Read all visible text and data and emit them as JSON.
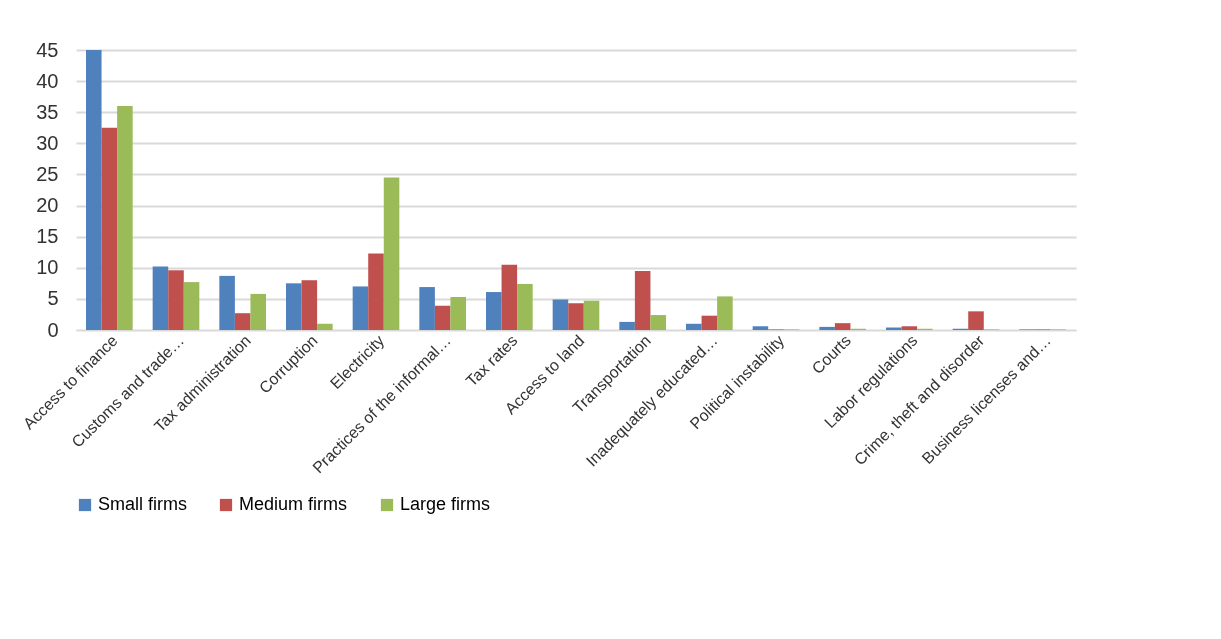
{
  "chart_data": {
    "type": "bar",
    "categories": [
      "Access to finance",
      "Customs and trade…",
      "Tax administration",
      "Corruption",
      "Electricity",
      "Practices of the informal…",
      "Tax rates",
      "Access to land",
      "Transportation",
      "Inadequately educated…",
      "Political instability",
      "Courts",
      "Labor regulations",
      "Crime, theft and disorder",
      "Business licenses and…"
    ],
    "series": [
      {
        "name": "Small firms",
        "color": "#4f81bd",
        "values": [
          45,
          10.2,
          8.7,
          7.5,
          7.0,
          6.9,
          6.1,
          4.9,
          1.3,
          1.0,
          0.6,
          0.5,
          0.4,
          0.2,
          0.1
        ]
      },
      {
        "name": "Medium firms",
        "color": "#c0504d",
        "values": [
          32.5,
          9.6,
          2.7,
          8.0,
          12.3,
          3.9,
          10.5,
          4.3,
          9.5,
          2.3,
          0.1,
          1.1,
          0.6,
          3.0,
          0.1
        ]
      },
      {
        "name": "Large firms",
        "color": "#9bbb59",
        "values": [
          36,
          7.7,
          5.8,
          1.0,
          24.5,
          5.3,
          7.4,
          4.7,
          2.4,
          5.4,
          0.1,
          0.2,
          0.2,
          0.1,
          0.1
        ]
      }
    ],
    "ylim": [
      0,
      45
    ],
    "yticks": [
      0,
      5,
      10,
      15,
      20,
      25,
      30,
      35,
      40,
      45
    ],
    "grid": "y",
    "legend": "bottom"
  }
}
